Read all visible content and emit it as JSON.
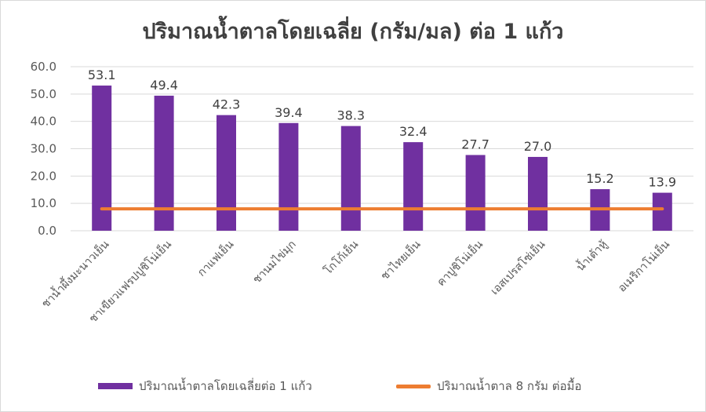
{
  "chart_data": {
    "type": "bar",
    "title": "ปริมาณน้ำตาลโดยเฉลี่ย (กรัม/มล) ต่อ 1 แก้ว",
    "categories": [
      "ชาน้ำผึ้งมะนาวเย็น",
      "ชาเขียวแฟรปปูชิโน่เย็น",
      "กาแฟเย็น",
      "ชานมไข่มุก",
      "โกโก้เย็น",
      "ชาไทยเย็น",
      "คาปูชิโน่เย็น",
      "เอสเปรสโซ่เย็น",
      "น้ำเต้าหู้",
      "อเมริกาโน่เย็น"
    ],
    "series": [
      {
        "name": "ปริมาณน้ำตาลโดยเฉลี่ยต่อ 1 แก้ว",
        "type": "bar",
        "values": [
          53.1,
          49.4,
          42.3,
          39.4,
          38.3,
          32.4,
          27.7,
          27.0,
          15.2,
          13.9
        ],
        "value_labels": [
          "53.1",
          "49.4",
          "42.3",
          "39.4",
          "38.3",
          "32.4",
          "27.7",
          "27.0",
          "15.2",
          "13.9"
        ],
        "color": "#7030a0"
      },
      {
        "name": "ปริมาณน้ำตาล 8 กรัม ต่อมื้อ",
        "type": "line",
        "values": [
          8,
          8,
          8,
          8,
          8,
          8,
          8,
          8,
          8,
          8
        ],
        "color": "#ed7d31"
      }
    ],
    "ylim": [
      0,
      60
    ],
    "yticks": [
      "0.0",
      "10.0",
      "20.0",
      "30.0",
      "40.0",
      "50.0",
      "60.0"
    ],
    "grid": true,
    "legend": "bottom"
  }
}
